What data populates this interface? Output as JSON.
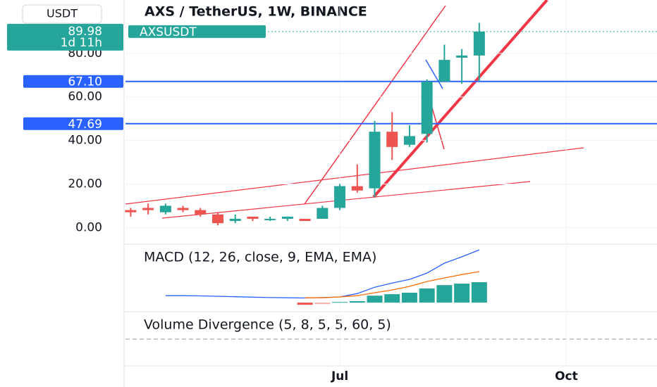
{
  "chart_data": {
    "type": "candlestick",
    "title": "AXS / TetherUS, 1W, BINANCE",
    "currency": "USDT",
    "symbol": "AXSUSDT",
    "countdown": "1d 11h",
    "last_price": 89.98,
    "categories": [
      null,
      null,
      null,
      null,
      null,
      null,
      null,
      null,
      null,
      null,
      null,
      null,
      null,
      null,
      null,
      null,
      null,
      null,
      null,
      null,
      null
    ],
    "open": [
      8,
      9,
      7,
      9,
      8,
      6,
      3,
      5,
      4,
      4,
      4,
      4,
      9,
      19,
      18,
      44,
      38,
      43,
      67,
      78,
      79
    ],
    "high": [
      9,
      11,
      11,
      10,
      9,
      7,
      6,
      5,
      5,
      5,
      4,
      10,
      20,
      29,
      49,
      53,
      47,
      68,
      84,
      82,
      94
    ],
    "low": [
      5,
      6,
      6,
      7,
      5,
      1,
      2,
      3,
      3,
      3,
      3,
      4,
      8,
      16,
      14,
      31,
      37,
      39,
      67,
      66,
      67
    ],
    "close": [
      7,
      8,
      10,
      8,
      6,
      2,
      4,
      4,
      4,
      5,
      3,
      9,
      19,
      17,
      44,
      37,
      42,
      67,
      77,
      79,
      90
    ],
    "up_color": "#26a69a",
    "down_color": "#ef5350",
    "xlim": [
      -0.3,
      30.2
    ],
    "xticks": [
      {
        "value": 12,
        "label": "Jul"
      },
      {
        "value": 25,
        "label": "Oct"
      }
    ],
    "ylim": [
      -7,
      104.5
    ],
    "yticks": [
      {
        "value": 0,
        "label": "0.00"
      },
      {
        "value": 20,
        "label": "20.00"
      },
      {
        "value": 40,
        "label": "40.00"
      },
      {
        "value": 60,
        "label": "60.00"
      },
      {
        "value": 80,
        "label": "80.00"
      }
    ],
    "grid": true,
    "hlines": [
      {
        "value": 67.1,
        "label": "67.10"
      },
      {
        "value": 47.69,
        "label": "47.69"
      }
    ],
    "hline_color": "#2962ff",
    "indicators": [
      {
        "title": "MACD (12, 26, close, 9, EMA, EMA)",
        "ylim": [
          -4.3,
          26.7
        ],
        "macd": [
          null,
          null,
          3.3,
          3.3,
          3.2,
          3.0,
          2.8,
          2.6,
          2.4,
          2.3,
          2.2,
          2.4,
          2.7,
          4.3,
          7.3,
          9.3,
          11,
          14,
          18.7,
          21.7,
          25
        ],
        "signal": [
          null,
          null,
          null,
          null,
          null,
          null,
          null,
          null,
          null,
          null,
          2.3,
          2.3,
          2.7,
          3.3,
          4.7,
          6,
          7.7,
          10,
          11.7,
          13.3,
          14.7
        ],
        "histogram": [
          null,
          null,
          null,
          null,
          null,
          null,
          null,
          null,
          null,
          null,
          -1,
          -0.7,
          0.3,
          0.7,
          3.3,
          4,
          4.7,
          6.7,
          8.3,
          9,
          9.7
        ],
        "macd_color": "#2962ff",
        "signal_color": "#ff6d00",
        "hist_colors": [
          "#ef5350",
          "#f7b0ad",
          "#26a69a"
        ]
      },
      {
        "title": "Volume Divergence (5, 8, 5, 5, 60, 5)"
      }
    ]
  }
}
